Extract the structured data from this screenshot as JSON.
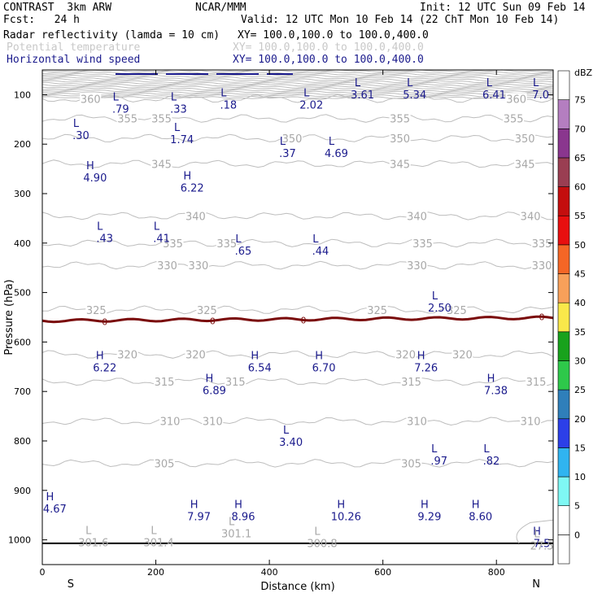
{
  "header": {
    "model": "CONTRAST  3km ARW",
    "org": "NCAR/MMM",
    "init": "Init: 12 UTC Sun 09 Feb 14",
    "fcst": "Fcst:   24 h",
    "valid": "Valid: 12 UTC Mon 10 Feb 14 (22 ChT Mon 10 Feb 14)",
    "fields": [
      {
        "name": "Radar reflectivity (lamda = 10 cm)",
        "xy": "XY= 100.0,100.0 to 100.0,400.0",
        "color": "#000000"
      },
      {
        "name": "Potential temperature",
        "xy": "XY= 100.0,100.0 to 100.0,400.0",
        "color": "#c8c8c8"
      },
      {
        "name": "Horizontal wind speed",
        "xy": "XY= 100.0,100.0 to 100.0,400.0",
        "color": "#1a1a8c"
      }
    ]
  },
  "chart_data": {
    "type": "cross-section contour",
    "xlabel": "Distance (km)",
    "ylabel": "Pressure (hPa)",
    "xlim": [
      0,
      900
    ],
    "ylim": [
      1050,
      50
    ],
    "xticks": [
      0,
      200,
      400,
      600,
      800
    ],
    "yticks": [
      100,
      200,
      300,
      400,
      500,
      600,
      700,
      800,
      900,
      1000
    ],
    "x_ends": {
      "left": "S",
      "right": "N"
    },
    "theta_contours": [
      {
        "value": 360,
        "p": 108,
        "labels": [
          [
            85,
            360
          ],
          [
            835,
            360
          ]
        ]
      },
      {
        "value": 355,
        "p": 148,
        "labels": [
          [
            150,
            355
          ],
          [
            210,
            355
          ],
          [
            630,
            355
          ],
          [
            830,
            355
          ]
        ]
      },
      {
        "value": 350,
        "p": 188,
        "labels": [
          [
            440,
            350
          ],
          [
            630,
            350
          ],
          [
            850,
            350
          ]
        ]
      },
      {
        "value": 345,
        "p": 240,
        "labels": [
          [
            210,
            345
          ],
          [
            630,
            345
          ],
          [
            850,
            345
          ]
        ]
      },
      {
        "value": 340,
        "p": 345,
        "labels": [
          [
            270,
            340
          ],
          [
            660,
            340
          ],
          [
            860,
            340
          ]
        ]
      },
      {
        "value": 335,
        "p": 400,
        "labels": [
          [
            230,
            335
          ],
          [
            325,
            335
          ],
          [
            670,
            335
          ],
          [
            880,
            335
          ]
        ]
      },
      {
        "value": 330,
        "p": 445,
        "labels": [
          [
            220,
            330
          ],
          [
            275,
            330
          ],
          [
            660,
            330
          ],
          [
            880,
            330
          ]
        ]
      },
      {
        "value": 325,
        "p": 535,
        "labels": [
          [
            95,
            325
          ],
          [
            290,
            325
          ],
          [
            590,
            325
          ],
          [
            730,
            325
          ]
        ]
      },
      {
        "value": 320,
        "p": 625,
        "labels": [
          [
            150,
            320
          ],
          [
            270,
            320
          ],
          [
            640,
            320
          ],
          [
            740,
            320
          ]
        ]
      },
      {
        "value": 315,
        "p": 680,
        "labels": [
          [
            215,
            315
          ],
          [
            340,
            315
          ],
          [
            650,
            315
          ],
          [
            870,
            315
          ]
        ]
      },
      {
        "value": 310,
        "p": 760,
        "labels": [
          [
            225,
            310
          ],
          [
            300,
            310
          ],
          [
            660,
            310
          ],
          [
            860,
            310
          ]
        ]
      },
      {
        "value": 305,
        "p": 845,
        "labels": [
          [
            215,
            305
          ],
          [
            650,
            305
          ]
        ]
      }
    ],
    "freezing_line": {
      "label": "0",
      "p": 557,
      "color": "#7a0a0a",
      "label_x": [
        110,
        300,
        460,
        880
      ]
    },
    "wind_extrema": [
      {
        "type": "L",
        "value": ".79",
        "x": 138,
        "p": 117
      },
      {
        "type": "L",
        "value": ".33",
        "x": 240,
        "p": 117
      },
      {
        "type": "L",
        "value": ".18",
        "x": 328,
        "p": 108
      },
      {
        "type": "L",
        "value": "2.02",
        "x": 474,
        "p": 108
      },
      {
        "type": "L",
        "value": "3.61",
        "x": 564,
        "p": 88
      },
      {
        "type": "L",
        "value": "5.34",
        "x": 656,
        "p": 88
      },
      {
        "type": "L",
        "value": "6.41",
        "x": 796,
        "p": 88
      },
      {
        "type": "L",
        "value": "7.0",
        "x": 878,
        "p": 88
      },
      {
        "type": "L",
        "value": ".30",
        "x": 68,
        "p": 170
      },
      {
        "type": "L",
        "value": "1.74",
        "x": 246,
        "p": 178
      },
      {
        "type": "L",
        "value": ".37",
        "x": 432,
        "p": 206
      },
      {
        "type": "L",
        "value": "4.69",
        "x": 518,
        "p": 206
      },
      {
        "type": "H",
        "value": "4.90",
        "x": 93,
        "p": 256
      },
      {
        "type": "H",
        "value": "6.22",
        "x": 264,
        "p": 276
      },
      {
        "type": "L",
        "value": ".43",
        "x": 110,
        "p": 378
      },
      {
        "type": "L",
        "value": ".41",
        "x": 210,
        "p": 378
      },
      {
        "type": "L",
        "value": ".65",
        "x": 354,
        "p": 404
      },
      {
        "type": "L",
        "value": ".44",
        "x": 490,
        "p": 404
      },
      {
        "type": "L",
        "value": "2.50",
        "x": 700,
        "p": 519
      },
      {
        "type": "H",
        "value": "6.22",
        "x": 110,
        "p": 640
      },
      {
        "type": "H",
        "value": "6.54",
        "x": 383,
        "p": 640
      },
      {
        "type": "H",
        "value": "6.70",
        "x": 496,
        "p": 640
      },
      {
        "type": "H",
        "value": "7.26",
        "x": 676,
        "p": 640
      },
      {
        "type": "H",
        "value": "6.89",
        "x": 303,
        "p": 686
      },
      {
        "type": "H",
        "value": "7.38",
        "x": 799,
        "p": 686
      },
      {
        "type": "L",
        "value": "3.40",
        "x": 438,
        "p": 790
      },
      {
        "type": "L",
        "value": ".97",
        "x": 699,
        "p": 828
      },
      {
        "type": "L",
        "value": ".82",
        "x": 791,
        "p": 828
      },
      {
        "type": "H",
        "value": "4.67",
        "x": 22,
        "p": 925
      },
      {
        "type": "H",
        "value": "7.97",
        "x": 276,
        "p": 941
      },
      {
        "type": "H",
        "value": "8.96",
        "x": 354,
        "p": 941
      },
      {
        "type": "H",
        "value": "10.26",
        "x": 535,
        "p": 941
      },
      {
        "type": "H",
        "value": "9.29",
        "x": 682,
        "p": 941
      },
      {
        "type": "H",
        "value": "8.60",
        "x": 772,
        "p": 941
      },
      {
        "type": "H",
        "value": "7.5",
        "x": 880,
        "p": 995
      }
    ],
    "theta_surface_lows": [
      {
        "type": "L",
        "value": "301.6",
        "x": 90,
        "p": 993
      },
      {
        "type": "L",
        "value": "301.4",
        "x": 205,
        "p": 993
      },
      {
        "type": "L",
        "value": "301.1",
        "x": 342,
        "p": 975
      },
      {
        "type": "L",
        "value": "300.8",
        "x": 493,
        "p": 995
      },
      {
        "type": "L",
        "value": "27.5",
        "x": 880,
        "p": 1000
      }
    ],
    "colorbar": {
      "title": "dBZ",
      "bounds": [
        -5,
        0,
        5,
        10,
        15,
        20,
        25,
        30,
        35,
        40,
        45,
        50,
        55,
        60,
        65,
        70,
        75,
        80
      ],
      "labels": [
        "0",
        "5",
        "10",
        "15",
        "20",
        "25",
        "30",
        "35",
        "40",
        "45",
        "50",
        "55",
        "60",
        "65",
        "70",
        "75"
      ],
      "colors": [
        "#ffffff",
        "#ffffff",
        "#7ff8f4",
        "#30b4f0",
        "#2c3fe8",
        "#2f7fba",
        "#2ec84a",
        "#18a21c",
        "#f9e84a",
        "#f8a05a",
        "#f56626",
        "#e80f0f",
        "#c40e0e",
        "#9a3e52",
        "#8a368e",
        "#b47ec0",
        "#ffffff"
      ]
    }
  }
}
